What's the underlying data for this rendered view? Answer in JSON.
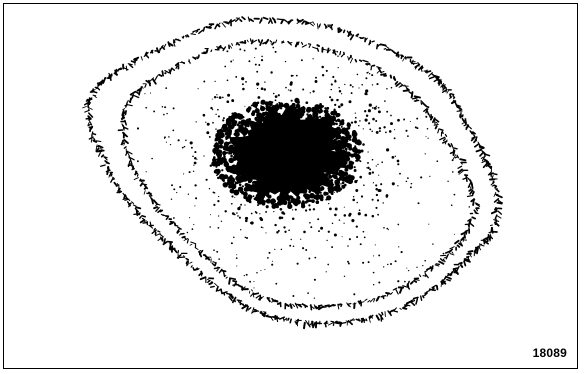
{
  "figure": {
    "number": "18089"
  },
  "colors": {
    "ink": "#000000",
    "paper": "#ffffff"
  }
}
